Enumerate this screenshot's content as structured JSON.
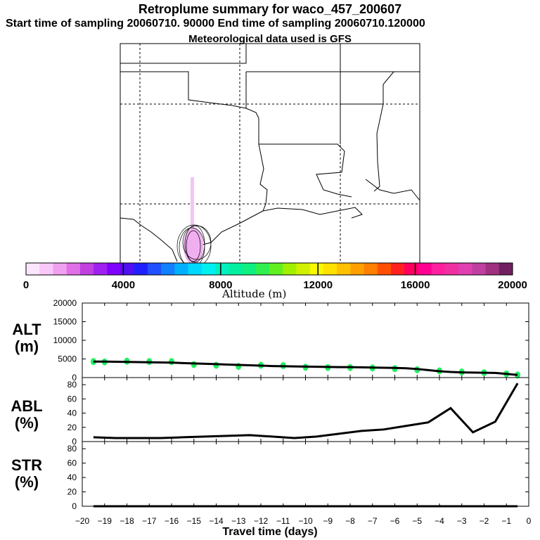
{
  "header": {
    "title": "Retroplume summary for waco_457_200607",
    "sampling_line": "Start time of sampling 20060710. 90000     End time of sampling 20060710.120000",
    "met_line": "Meteorological data used is GFS"
  },
  "colorbar": {
    "label": "Altitude (m)",
    "tick_labels": [
      "0",
      "4000",
      "8000",
      "12000",
      "16000",
      "20000"
    ],
    "colors": [
      "#fde6fd",
      "#f8c8f8",
      "#f0a0f0",
      "#e070e8",
      "#c040e0",
      "#a020f0",
      "#8000ff",
      "#5010f0",
      "#2020ff",
      "#2050ff",
      "#1080ff",
      "#00b0ff",
      "#00d8ff",
      "#00f0f0",
      "#00f0c0",
      "#00f0a0",
      "#10f080",
      "#30f050",
      "#60f020",
      "#a0f000",
      "#d0f000",
      "#f8f800",
      "#ffe000",
      "#ffc000",
      "#ffa000",
      "#ff8000",
      "#ff5000",
      "#ff2020",
      "#ff0060",
      "#ff0090",
      "#ff20a0",
      "#f030a0",
      "#e040b0",
      "#c040a0",
      "#a03080",
      "#702060"
    ]
  },
  "chart_data": [
    {
      "type": "line",
      "panel": "ALT",
      "ylabel": "ALT (m)",
      "ylim": [
        0,
        20000
      ],
      "yticks": [
        0,
        5000,
        10000,
        15000,
        20000
      ],
      "x": [
        -19.5,
        -19,
        -18.5,
        -18,
        -17.5,
        -17,
        -16.5,
        -16,
        -15.5,
        -15,
        -14.5,
        -14,
        -13.5,
        -13,
        -12.5,
        -12,
        -11.5,
        -11,
        -10.5,
        -10,
        -9.5,
        -9,
        -8.5,
        -8,
        -7.5,
        -7,
        -6.5,
        -6,
        -5.5,
        -5,
        -4.5,
        -4,
        -3.5,
        -3,
        -2.5,
        -2,
        -1.5,
        -1,
        -0.5
      ],
      "values": [
        4300,
        4300,
        4250,
        4200,
        4150,
        4100,
        4050,
        4000,
        3900,
        3800,
        3700,
        3600,
        3500,
        3400,
        3300,
        3200,
        3100,
        3050,
        3000,
        2950,
        2900,
        2850,
        2800,
        2800,
        2750,
        2700,
        2650,
        2600,
        2500,
        2300,
        2000,
        1700,
        1500,
        1400,
        1350,
        1300,
        1250,
        1000,
        700
      ],
      "scatter_x": [
        -19.5,
        -19,
        -18,
        -17,
        -16,
        -15,
        -14,
        -13,
        -12,
        -11,
        -10,
        -9,
        -8,
        -7,
        -6,
        -5,
        -4,
        -3,
        -2,
        -1,
        -0.5
      ],
      "scatter_y": [
        4300,
        4200,
        4400,
        4300,
        4300,
        3500,
        3300,
        3000,
        3300,
        3200,
        2800,
        2700,
        2700,
        2600,
        2400,
        2100,
        1800,
        1500,
        1300,
        1000,
        700
      ]
    },
    {
      "type": "line",
      "panel": "ABL",
      "ylabel": "ABL (%)",
      "ylim": [
        0,
        90
      ],
      "yticks": [
        0,
        20,
        40,
        60,
        80
      ],
      "x": [
        -19.5,
        -18.5,
        -17.5,
        -16.5,
        -15.5,
        -14.5,
        -13.5,
        -12.5,
        -11.5,
        -10.5,
        -9.5,
        -8.5,
        -7.5,
        -6.5,
        -5.5,
        -4.5,
        -3.5,
        -2.5,
        -1.5,
        -0.5
      ],
      "values": [
        6,
        5,
        5,
        5,
        6,
        7,
        8,
        9,
        7,
        5,
        7,
        11,
        15,
        17,
        22,
        27,
        47,
        13,
        28,
        82
      ]
    },
    {
      "type": "line",
      "panel": "STR",
      "ylabel": "STR (%)",
      "ylim": [
        0,
        90
      ],
      "yticks": [
        0,
        20,
        40,
        60,
        80
      ],
      "x": [
        -19.5,
        -18.5,
        -17.5,
        -16.5,
        -15.5,
        -14.5,
        -13.5,
        -12.5,
        -11.5,
        -10.5,
        -9.5,
        -8.5,
        -7.5,
        -6.5,
        -5.5,
        -4.5,
        -3.5,
        -2.5,
        -1.5,
        -0.5
      ],
      "values": [
        0,
        0,
        0,
        0,
        0,
        0,
        0,
        0,
        0,
        0,
        0,
        0,
        0,
        0,
        0,
        0,
        0,
        0,
        0,
        0
      ]
    }
  ],
  "xaxis": {
    "label": "Travel time (days)",
    "ticks": [
      -20,
      -19,
      -18,
      -17,
      -16,
      -15,
      -14,
      -13,
      -12,
      -11,
      -10,
      -9,
      -8,
      -7,
      -6,
      -5,
      -4,
      -3,
      -2,
      -1,
      0
    ],
    "tick_labels": [
      "−20",
      "−19",
      "−18",
      "−17",
      "−16",
      "−15",
      "−14",
      "−13",
      "−12",
      "−11",
      "−10",
      "−9",
      "−8",
      "−7",
      "−6",
      "−5",
      "−4",
      "−3",
      "−2",
      "−1",
      "0"
    ],
    "xlim": [
      -20,
      0
    ]
  },
  "panel_labels": {
    "alt": [
      "ALT",
      "(m)"
    ],
    "abl": [
      "ABL",
      "(%)"
    ],
    "str": [
      "STR",
      "(%)"
    ]
  }
}
